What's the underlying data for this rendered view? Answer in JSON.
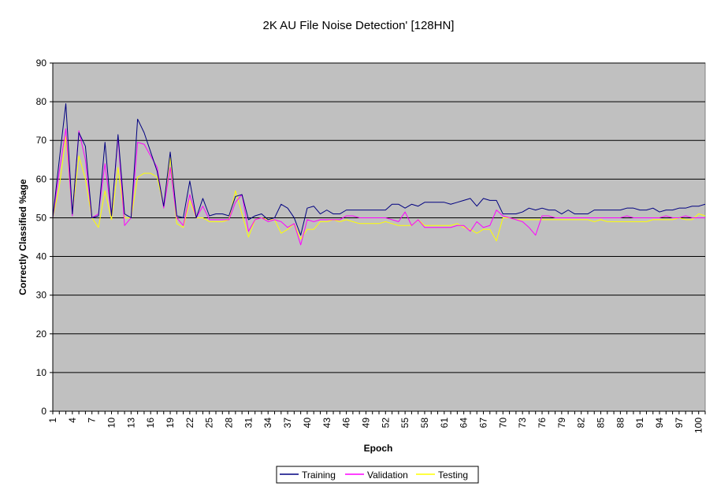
{
  "chart_data": {
    "type": "line",
    "title": "2K AU File Noise Detection' [128HN]",
    "xlabel": "Epoch",
    "ylabel": "Correctly Classified %age",
    "ylim": [
      0,
      90
    ],
    "yticks": [
      0,
      10,
      20,
      30,
      40,
      50,
      60,
      70,
      80,
      90
    ],
    "x_tick_labels": [
      "1",
      "4",
      "7",
      "10",
      "13",
      "16",
      "19",
      "22",
      "25",
      "28",
      "31",
      "34",
      "37",
      "40",
      "43",
      "46",
      "49",
      "52",
      "55",
      "58",
      "61",
      "64",
      "67",
      "70",
      "73",
      "76",
      "79",
      "82",
      "85",
      "88",
      "91",
      "94",
      "97",
      "100"
    ],
    "x": [
      1,
      2,
      3,
      4,
      5,
      6,
      7,
      8,
      9,
      10,
      11,
      12,
      13,
      14,
      15,
      16,
      17,
      18,
      19,
      20,
      21,
      22,
      23,
      24,
      25,
      26,
      27,
      28,
      29,
      30,
      31,
      32,
      33,
      34,
      35,
      36,
      37,
      38,
      39,
      40,
      41,
      42,
      43,
      44,
      45,
      46,
      47,
      48,
      49,
      50,
      51,
      52,
      53,
      54,
      55,
      56,
      57,
      58,
      59,
      60,
      61,
      62,
      63,
      64,
      65,
      66,
      67,
      68,
      69,
      70,
      71,
      72,
      73,
      74,
      75,
      76,
      77,
      78,
      79,
      80,
      81,
      82,
      83,
      84,
      85,
      86,
      87,
      88,
      89,
      90,
      91,
      92,
      93,
      94,
      95,
      96,
      97,
      98,
      99,
      100,
      101
    ],
    "grid": true,
    "plot_background": "#c0c0c0",
    "legend_position": "bottom",
    "series": [
      {
        "name": "Training",
        "color": "#000080",
        "values": [
          50,
          65,
          79.5,
          51,
          72,
          68.5,
          50,
          50.5,
          69.5,
          50.5,
          71.5,
          51,
          50,
          75.5,
          72,
          67,
          62,
          53,
          67,
          50.5,
          50,
          59.5,
          50,
          55,
          50.5,
          51,
          51,
          50.5,
          55.5,
          56,
          49.5,
          50.5,
          51,
          49.5,
          50,
          53.5,
          52.5,
          50,
          45.5,
          52.5,
          53,
          51,
          52,
          51,
          51,
          52,
          52,
          52,
          52,
          52,
          52,
          52,
          53.5,
          53.5,
          52.5,
          53.5,
          53,
          54,
          54,
          54,
          54,
          53.5,
          54,
          54.5,
          55,
          53,
          55,
          54.5,
          54.5,
          51,
          51,
          51,
          51.5,
          52.5,
          52,
          52.5,
          52,
          52,
          51,
          52,
          51,
          51,
          51,
          52,
          52,
          52,
          52,
          52,
          52.5,
          52.5,
          52,
          52,
          52.5,
          51.5,
          52,
          52,
          52.5,
          52.5,
          53,
          53,
          53.5
        ]
      },
      {
        "name": "Validation",
        "color": "#ff00ff",
        "values": [
          50,
          62,
          73,
          50.5,
          72.5,
          65,
          50,
          51,
          64,
          50.5,
          71,
          48,
          50,
          69.5,
          69,
          66,
          63,
          52.5,
          63,
          50,
          48,
          56,
          50,
          53,
          49.5,
          49.5,
          49.5,
          49.5,
          54,
          56,
          46.5,
          49.5,
          50,
          49,
          49.5,
          49,
          47.5,
          48.5,
          43,
          49.5,
          49,
          49.5,
          49.5,
          49.5,
          49.5,
          50.5,
          50.5,
          50,
          50,
          50,
          50,
          50,
          49.5,
          49,
          51.5,
          48,
          49.5,
          47.5,
          47.5,
          47.5,
          47.5,
          47.5,
          48,
          48,
          46.5,
          49,
          47.5,
          48,
          52,
          50.5,
          50,
          49.5,
          49,
          47.5,
          45.5,
          50.5,
          50.5,
          50,
          50,
          50,
          50,
          50,
          50,
          50,
          50,
          50,
          50,
          50,
          50.5,
          50,
          50,
          50,
          50,
          50,
          50.5,
          50,
          50,
          50.5,
          50,
          50,
          50
        ]
      },
      {
        "name": "Testing",
        "color": "#ffff00",
        "values": [
          50,
          58,
          71,
          51,
          66,
          60,
          50,
          47.5,
          57,
          49.5,
          63,
          50,
          50,
          60.5,
          61.5,
          61.5,
          60.5,
          53,
          65.5,
          48.5,
          47.5,
          54.5,
          50,
          50,
          49,
          49,
          49,
          49.5,
          57,
          51,
          45,
          49.5,
          50,
          49.5,
          49.5,
          46,
          47,
          48.5,
          44.5,
          47,
          47,
          49,
          49,
          49.5,
          49,
          49.5,
          49,
          48.5,
          48.5,
          48.5,
          48.5,
          49,
          48.5,
          48,
          48,
          48,
          49.5,
          48,
          48,
          48,
          48,
          48,
          48.5,
          47.5,
          47,
          46,
          47,
          47,
          44,
          50,
          50,
          49.5,
          49.5,
          49.5,
          49.5,
          49.5,
          49.5,
          49.5,
          49.5,
          49.5,
          49.5,
          49.5,
          49.5,
          49,
          49.5,
          49,
          49,
          49,
          49,
          49,
          49,
          49,
          49.5,
          49.5,
          49.5,
          49.5,
          50,
          49.5,
          49.5,
          51,
          50.5
        ]
      }
    ]
  }
}
